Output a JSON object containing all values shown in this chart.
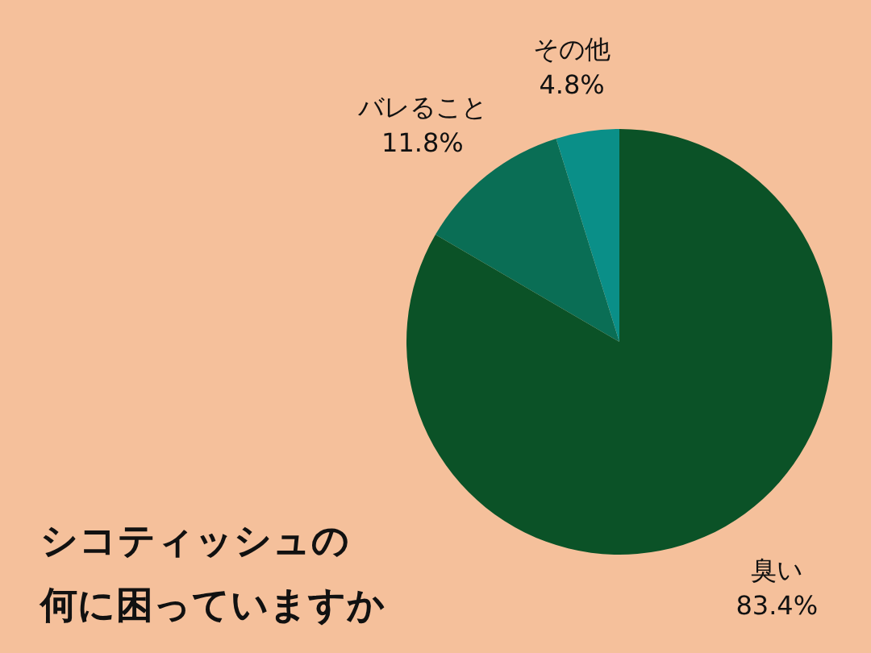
{
  "chart_data": {
    "type": "pie",
    "title": "シコティッシュの何に困っていますか",
    "categories": [
      "臭い",
      "バレること",
      "その他"
    ],
    "values": [
      83.4,
      11.8,
      4.8
    ],
    "value_labels": [
      "83.4%",
      "11.8%",
      "4.8%"
    ],
    "colors": [
      "#0b5227",
      "#0a6e55",
      "#0a8f88"
    ]
  }
}
